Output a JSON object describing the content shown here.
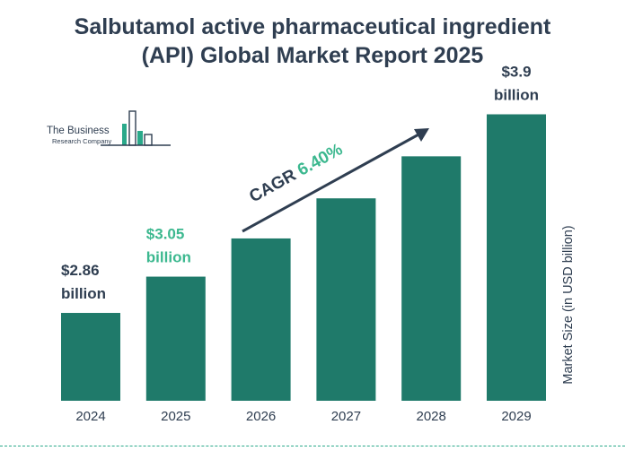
{
  "page": {
    "title_line1": "Salbutamol active pharmaceutical ingredient",
    "title_line2": "(API) Global Market Report 2025",
    "logo_line1": "The Business",
    "logo_line2": "Research Company"
  },
  "colors": {
    "bar": "#1f7a6a",
    "text_dark": "#2f3e51",
    "highlight": "#3cb88f"
  },
  "chart_data": {
    "type": "bar",
    "categories": [
      "2024",
      "2025",
      "2026",
      "2027",
      "2028",
      "2029"
    ],
    "values": [
      2.86,
      3.05,
      3.25,
      3.46,
      3.68,
      3.9
    ],
    "ylabel": "Market Size (in USD billion)",
    "data_labels": [
      {
        "index": 0,
        "value_text": "$2.86",
        "unit_text": "billion",
        "color": "#2f3e51"
      },
      {
        "index": 1,
        "value_text": "$3.05",
        "unit_text": "billion",
        "color": "#3cb88f"
      },
      {
        "index": 5,
        "value_text": "$3.9",
        "unit_text": "billion",
        "color": "#2f3e51"
      }
    ],
    "annotation": {
      "label": "CAGR",
      "value": "6.40%"
    }
  }
}
